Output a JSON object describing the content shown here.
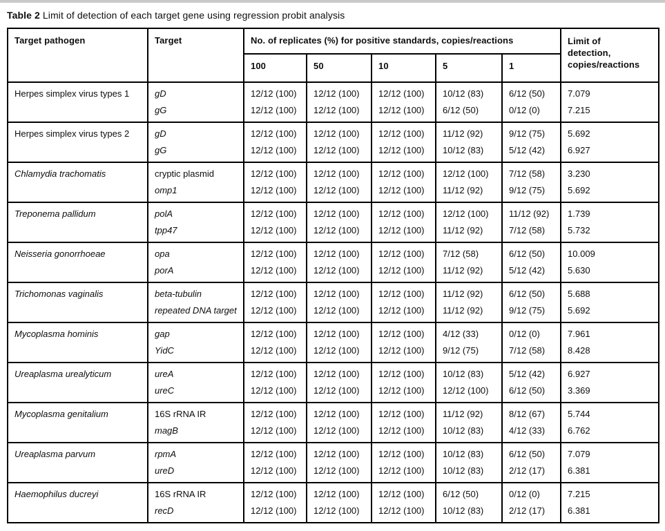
{
  "title": {
    "label": "Table 2",
    "text": "Limit of detection of each target gene using regression probit analysis"
  },
  "colors": {
    "background": "#ffffff",
    "text": "#0d0d0d",
    "border": "#000000",
    "top_strip": "#c9c9c9"
  },
  "table": {
    "headers": {
      "pathogen": "Target pathogen",
      "target": "Target",
      "replicates": "No. of replicates (%) for positive standards, copies/reactions",
      "concentrations": [
        "100",
        "50",
        "10",
        "5",
        "1"
      ],
      "lod": "Limit of detection, copies/reactions",
      "lod_lines": [
        "Limit of",
        "detection,",
        "copies/reactions"
      ]
    },
    "rows": [
      {
        "pathogen": "Herpes simplex virus types 1",
        "pathogen_italic": false,
        "genes": [
          {
            "name": "gD",
            "italic": true,
            "values": [
              "12/12 (100)",
              "12/12 (100)",
              "12/12 (100)",
              "10/12 (83)",
              "6/12 (50)"
            ],
            "lod": "7.079"
          },
          {
            "name": "gG",
            "italic": true,
            "values": [
              "12/12 (100)",
              "12/12 (100)",
              "12/12 (100)",
              "6/12 (50)",
              "0/12 (0)"
            ],
            "lod": "7.215"
          }
        ]
      },
      {
        "pathogen": "Herpes simplex virus types 2",
        "pathogen_italic": false,
        "genes": [
          {
            "name": "gD",
            "italic": true,
            "values": [
              "12/12 (100)",
              "12/12 (100)",
              "12/12 (100)",
              "11/12 (92)",
              "9/12 (75)"
            ],
            "lod": "5.692"
          },
          {
            "name": "gG",
            "italic": true,
            "values": [
              "12/12 (100)",
              "12/12 (100)",
              "12/12 (100)",
              "10/12 (83)",
              "5/12 (42)"
            ],
            "lod": "6.927"
          }
        ]
      },
      {
        "pathogen": "Chlamydia trachomatis",
        "pathogen_italic": true,
        "genes": [
          {
            "name": "cryptic plasmid",
            "italic": false,
            "values": [
              "12/12 (100)",
              "12/12 (100)",
              "12/12 (100)",
              "12/12 (100)",
              "7/12 (58)"
            ],
            "lod": "3.230"
          },
          {
            "name": "omp1",
            "italic": true,
            "values": [
              "12/12 (100)",
              "12/12 (100)",
              "12/12 (100)",
              "11/12 (92)",
              "9/12 (75)"
            ],
            "lod": "5.692"
          }
        ]
      },
      {
        "pathogen": "Treponema pallidum",
        "pathogen_italic": true,
        "genes": [
          {
            "name": "polA",
            "italic": true,
            "values": [
              "12/12 (100)",
              "12/12 (100)",
              "12/12 (100)",
              "12/12 (100)",
              "11/12 (92)"
            ],
            "lod": "1.739"
          },
          {
            "name": "tpp47",
            "italic": true,
            "values": [
              "12/12 (100)",
              "12/12 (100)",
              "12/12 (100)",
              "11/12 (92)",
              "7/12 (58)"
            ],
            "lod": "5.732"
          }
        ]
      },
      {
        "pathogen": "Neisseria gonorrhoeae",
        "pathogen_italic": true,
        "genes": [
          {
            "name": "opa",
            "italic": true,
            "values": [
              "12/12 (100)",
              "12/12 (100)",
              "12/12 (100)",
              "7/12 (58)",
              "6/12 (50)"
            ],
            "lod": "10.009"
          },
          {
            "name": "porA",
            "italic": true,
            "values": [
              "12/12 (100)",
              "12/12 (100)",
              "12/12 (100)",
              "11/12 (92)",
              "5/12 (42)"
            ],
            "lod": "5.630"
          }
        ]
      },
      {
        "pathogen": "Trichomonas vaginalis",
        "pathogen_italic": true,
        "genes": [
          {
            "name": "beta-tubulin",
            "italic": true,
            "values": [
              "12/12 (100)",
              "12/12 (100)",
              "12/12 (100)",
              "11/12 (92)",
              "6/12 (50)"
            ],
            "lod": "5.688"
          },
          {
            "name": "repeated DNA target",
            "italic": true,
            "values": [
              "12/12 (100)",
              "12/12 (100)",
              "12/12 (100)",
              "11/12 (92)",
              "9/12 (75)"
            ],
            "lod": "5.692"
          }
        ]
      },
      {
        "pathogen": "Mycoplasma hominis",
        "pathogen_italic": true,
        "genes": [
          {
            "name": "gap",
            "italic": true,
            "values": [
              "12/12 (100)",
              "12/12 (100)",
              "12/12 (100)",
              "4/12 (33)",
              "0/12 (0)"
            ],
            "lod": "7.961"
          },
          {
            "name": "YidC",
            "italic": true,
            "values": [
              "12/12 (100)",
              "12/12 (100)",
              "12/12 (100)",
              "9/12 (75)",
              "7/12 (58)"
            ],
            "lod": "8.428"
          }
        ]
      },
      {
        "pathogen": "Ureaplasma urealyticum",
        "pathogen_italic": true,
        "genes": [
          {
            "name": "ureA",
            "italic": true,
            "values": [
              "12/12 (100)",
              "12/12 (100)",
              "12/12 (100)",
              "10/12 (83)",
              "5/12 (42)"
            ],
            "lod": "6.927"
          },
          {
            "name": "ureC",
            "italic": true,
            "values": [
              "12/12 (100)",
              "12/12 (100)",
              "12/12 (100)",
              "12/12 (100)",
              "6/12 (50)"
            ],
            "lod": "3.369"
          }
        ]
      },
      {
        "pathogen": "Mycoplasma genitalium",
        "pathogen_italic": true,
        "genes": [
          {
            "name": "16S rRNA IR",
            "italic": false,
            "values": [
              "12/12 (100)",
              "12/12 (100)",
              "12/12 (100)",
              "11/12 (92)",
              "8/12 (67)"
            ],
            "lod": "5.744"
          },
          {
            "name": "magB",
            "italic": true,
            "values": [
              "12/12 (100)",
              "12/12 (100)",
              "12/12 (100)",
              "10/12 (83)",
              "4/12 (33)"
            ],
            "lod": "6.762"
          }
        ]
      },
      {
        "pathogen": "Ureaplasma parvum",
        "pathogen_italic": true,
        "genes": [
          {
            "name": "rpmA",
            "italic": true,
            "values": [
              "12/12 (100)",
              "12/12 (100)",
              "12/12 (100)",
              "10/12 (83)",
              "6/12 (50)"
            ],
            "lod": "7.079"
          },
          {
            "name": "ureD",
            "italic": true,
            "values": [
              "12/12 (100)",
              "12/12 (100)",
              "12/12 (100)",
              "10/12 (83)",
              "2/12 (17)"
            ],
            "lod": "6.381"
          }
        ]
      },
      {
        "pathogen": "Haemophilus ducreyi",
        "pathogen_italic": true,
        "genes": [
          {
            "name": "16S rRNA IR",
            "italic": false,
            "values": [
              "12/12 (100)",
              "12/12 (100)",
              "12/12 (100)",
              "6/12 (50)",
              "0/12 (0)"
            ],
            "lod": "7.215"
          },
          {
            "name": "recD",
            "italic": true,
            "values": [
              "12/12 (100)",
              "12/12 (100)",
              "12/12 (100)",
              "10/12 (83)",
              "2/12 (17)"
            ],
            "lod": "6.381"
          }
        ]
      }
    ]
  }
}
